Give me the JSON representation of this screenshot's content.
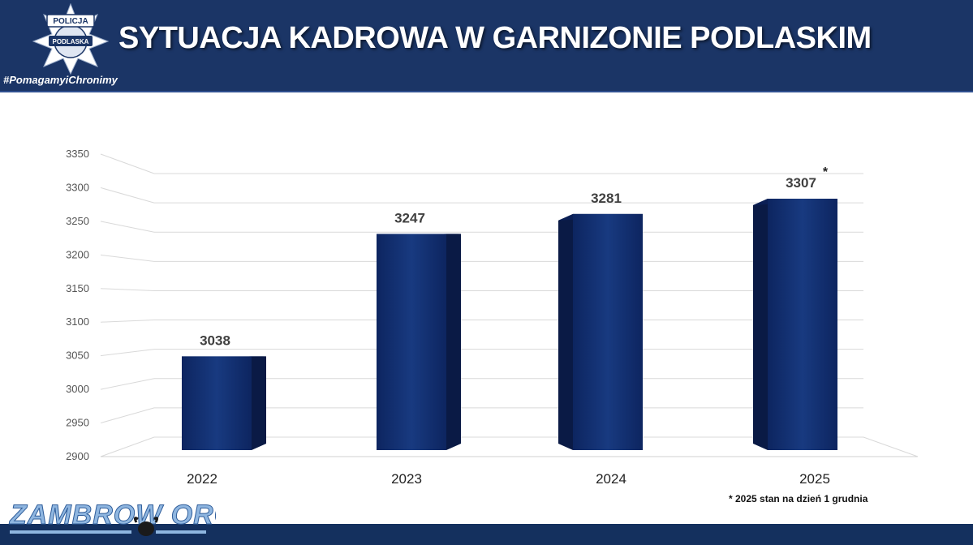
{
  "header": {
    "title": "SYTUACJA KADROWA W GARNIZONIE PODLASKIM",
    "hashtag": "#PomagamyiChronimy",
    "badge_top_text": "POLICJA",
    "badge_bottom_text": "PODLASKA"
  },
  "colors": {
    "header_bg": "#1b3566",
    "bar_front": "#0f2a6b",
    "bar_side": "#0a1a45",
    "footer_bar": "#14305e"
  },
  "chart_data": {
    "type": "bar",
    "categories": [
      "2022",
      "2023",
      "2024",
      "2025"
    ],
    "values": [
      3038,
      3247,
      3281,
      3307
    ],
    "data_labels": [
      "3038",
      "3247",
      "3281",
      "3307"
    ],
    "ylim": [
      2900,
      3350
    ],
    "yticks": [
      2900,
      2950,
      3000,
      3050,
      3100,
      3150,
      3200,
      3250,
      3300,
      3350
    ],
    "grid": true,
    "annotation_asterisk": "*",
    "footnote": "* 2025 stan na dzień 1 grudnia"
  },
  "watermark": {
    "text": "ZAMBROW ORG"
  }
}
